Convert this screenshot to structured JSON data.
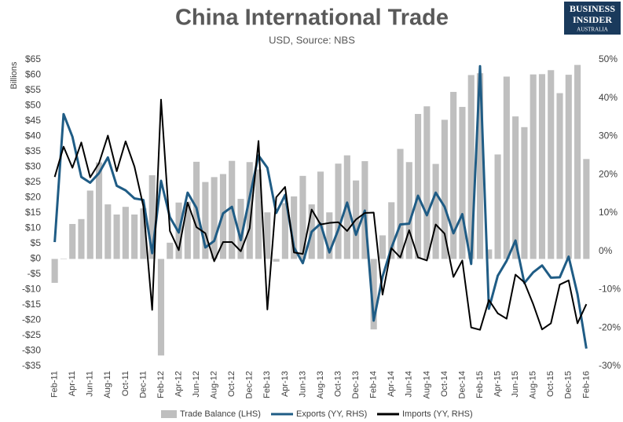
{
  "logo": [
    "BUSINESS",
    "INSIDER",
    "AUSTRALIA"
  ],
  "chart_data": {
    "type": "combo",
    "title": "China International Trade",
    "subtitle": "USD, Source: NBS",
    "y_label": "Billions",
    "categories": [
      "Feb-11",
      null,
      "Apr-11",
      null,
      "Jun-11",
      null,
      "Aug-11",
      null,
      "Oct-11",
      null,
      "Dec-11",
      null,
      "Feb-12",
      null,
      "Apr-12",
      null,
      "Jun-12",
      null,
      "Aug-12",
      null,
      "Oct-12",
      null,
      "Dec-12",
      null,
      "Feb-13",
      null,
      "Apr-13",
      null,
      "Jun-13",
      null,
      "Aug-13",
      null,
      "Oct-13",
      null,
      "Dec-13",
      null,
      "Feb-14",
      null,
      "Apr-14",
      null,
      "Jun-14",
      null,
      "Aug-14",
      null,
      "Oct-14",
      null,
      "Dec-14",
      null,
      "Feb-15",
      null,
      "Apr-15",
      null,
      "Jun-15",
      null,
      "Aug-15",
      null,
      "Oct-15",
      null,
      "Dec-15",
      null,
      "Feb-16"
    ],
    "series": [
      {
        "name": "Trade Balance (LHS)",
        "type": "bar",
        "axis": "y",
        "color": "#bfbfbf",
        "values": [
          -7.8,
          0.1,
          11.4,
          13,
          22.3,
          31.5,
          17.8,
          14.5,
          17,
          14.5,
          16.5,
          27.3,
          -31.5,
          5.3,
          18.4,
          18.7,
          31.7,
          25.1,
          26.7,
          27.7,
          32,
          19.6,
          31.6,
          29.2,
          15.2,
          -0.9,
          18.2,
          20.4,
          27.1,
          17.8,
          28.5,
          15.2,
          31.1,
          33.8,
          25.6,
          31.9,
          -23,
          7.7,
          18.5,
          35.9,
          31.6,
          47.3,
          49.8,
          31,
          45.4,
          54.5,
          49.6,
          60,
          60.6,
          3.1,
          34.1,
          59.5,
          46.5,
          43,
          60.2,
          60.3,
          61.6,
          54.1,
          60.1,
          63.3,
          32.6
        ]
      },
      {
        "name": "Exports (YY, RHS)",
        "type": "line",
        "axis": "y2",
        "color": "#1f5c85",
        "values": [
          2.4,
          35.8,
          29.9,
          19.4,
          17.9,
          20.4,
          24.5,
          17.1,
          15.9,
          13.8,
          13.4,
          -0.5,
          18.4,
          8.9,
          4.9,
          15.3,
          11.3,
          1.0,
          2.7,
          9.9,
          11.6,
          2.9,
          14.1,
          25.0,
          21.8,
          10.0,
          14.7,
          1.0,
          -3.1,
          5.1,
          7.2,
          -0.3,
          5.6,
          12.7,
          4.3,
          10.6,
          -18.1,
          -6.6,
          0.9,
          7.0,
          7.2,
          14.5,
          9.4,
          15.3,
          11.6,
          4.7,
          9.7,
          -3.3,
          48.3,
          -15.0,
          -6.4,
          -2.5,
          2.8,
          -8.3,
          -5.5,
          -3.7,
          -6.9,
          -6.8,
          -1.4,
          -11.2,
          -25.4
        ]
      },
      {
        "name": "Imports (YY, RHS)",
        "type": "line",
        "axis": "y2",
        "color": "#000000",
        "values": [
          19.4,
          27.3,
          21.8,
          28.4,
          19.3,
          23.0,
          30.2,
          20.9,
          28.7,
          22.1,
          11.8,
          -15.3,
          39.6,
          5.3,
          0.3,
          12.7,
          6.3,
          4.7,
          -2.6,
          2.4,
          2.4,
          0.0,
          6.0,
          28.8,
          -15.2,
          14.1,
          16.8,
          -0.3,
          -0.7,
          10.9,
          7.0,
          7.4,
          7.6,
          5.3,
          8.3,
          10.0,
          10.1,
          -11.3,
          0.8,
          -1.6,
          5.5,
          -1.6,
          -2.4,
          7.0,
          4.6,
          -6.7,
          -2.4,
          -19.9,
          -20.5,
          -12.7,
          -16.2,
          -17.6,
          -6.1,
          -8.1,
          -13.8,
          -20.4,
          -18.8,
          -8.7,
          -7.6,
          -18.8,
          -13.8
        ]
      }
    ],
    "ylim": [
      -35,
      65
    ],
    "yticks": [
      {
        "value": -35,
        "label": "-$35"
      },
      {
        "value": -30,
        "label": "-$30"
      },
      {
        "value": -25,
        "label": "-$25"
      },
      {
        "value": -20,
        "label": "-$20"
      },
      {
        "value": -15,
        "label": "-$15"
      },
      {
        "value": -10,
        "label": "-$10"
      },
      {
        "value": -5,
        "label": "-$5"
      },
      {
        "value": 0,
        "label": "$0"
      },
      {
        "value": 5,
        "label": "$5"
      },
      {
        "value": 10,
        "label": "$10"
      },
      {
        "value": 15,
        "label": "$15"
      },
      {
        "value": 20,
        "label": "$20"
      },
      {
        "value": 25,
        "label": "$25"
      },
      {
        "value": 30,
        "label": "$30"
      },
      {
        "value": 35,
        "label": "$35"
      },
      {
        "value": 40,
        "label": "$40"
      },
      {
        "value": 45,
        "label": "$45"
      },
      {
        "value": 50,
        "label": "$50"
      },
      {
        "value": 55,
        "label": "$55"
      },
      {
        "value": 60,
        "label": "$60"
      },
      {
        "value": 65,
        "label": "$65"
      }
    ],
    "y2lim": [
      -30,
      50
    ],
    "y2ticks": [
      {
        "value": -30,
        "label": "-30%"
      },
      {
        "value": -20,
        "label": "-20%"
      },
      {
        "value": -10,
        "label": "-10%"
      },
      {
        "value": 0,
        "label": "0%"
      },
      {
        "value": 10,
        "label": "10%"
      },
      {
        "value": 20,
        "label": "20%"
      },
      {
        "value": 30,
        "label": "30%"
      },
      {
        "value": 40,
        "label": "40%"
      },
      {
        "value": 50,
        "label": "50%"
      }
    ],
    "grid": false,
    "legend": "bottom"
  }
}
